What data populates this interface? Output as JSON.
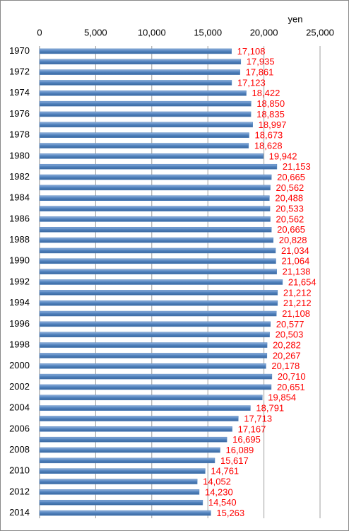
{
  "chart_data": {
    "type": "barh",
    "unit_label": "yen",
    "categories": [
      "1970",
      null,
      "1972",
      null,
      "1974",
      null,
      "1976",
      null,
      "1978",
      null,
      "1980",
      null,
      "1982",
      null,
      "1984",
      null,
      "1986",
      null,
      "1988",
      null,
      "1990",
      null,
      "1992",
      null,
      "1994",
      null,
      "1996",
      null,
      "1998",
      null,
      "2000",
      null,
      "2002",
      null,
      "2004",
      null,
      "2006",
      null,
      "2008",
      null,
      "2010",
      null,
      "2012",
      null,
      "2014"
    ],
    "values": [
      17108,
      17935,
      17861,
      17123,
      18422,
      18850,
      18835,
      18997,
      18673,
      18628,
      19942,
      21153,
      20665,
      20562,
      20488,
      20533,
      20562,
      20665,
      20828,
      21034,
      21064,
      21138,
      21654,
      21212,
      21212,
      21108,
      20577,
      20503,
      20282,
      20267,
      20178,
      20710,
      20651,
      19854,
      18791,
      17713,
      17167,
      16695,
      16089,
      15617,
      14761,
      14052,
      14230,
      14540,
      15263
    ],
    "value_labels": [
      "17,108",
      "17,935",
      "17,861",
      "17,123",
      "18,422",
      "18,850",
      "18,835",
      "18,997",
      "18,673",
      "18,628",
      "19,942",
      "21,153",
      "20,665",
      "20,562",
      "20,488",
      "20,533",
      "20,562",
      "20,665",
      "20,828",
      "21,034",
      "21,064",
      "21,138",
      "21,654",
      "21,212",
      "21,212",
      "21,108",
      "20,577",
      "20,503",
      "20,282",
      "20,267",
      "20,178",
      "20,710",
      "20,651",
      "19,854",
      "18,791",
      "17,713",
      "17,167",
      "16,695",
      "16,089",
      "15,617",
      "14,761",
      "14,052",
      "14,230",
      "14,540",
      "15,263"
    ],
    "color": "#4f81bd",
    "label_color": "#ff0000",
    "xlim": [
      0,
      25000
    ],
    "xticks": [
      0,
      {
        "value": 5000,
        "label": "5,000"
      },
      {
        "value": 10000,
        "label": "10,000"
      },
      {
        "value": 15000,
        "label": "15,000"
      },
      {
        "value": 20000,
        "label": "20,000"
      },
      {
        "value": 25000,
        "label": "25,000"
      }
    ],
    "grid": true
  }
}
